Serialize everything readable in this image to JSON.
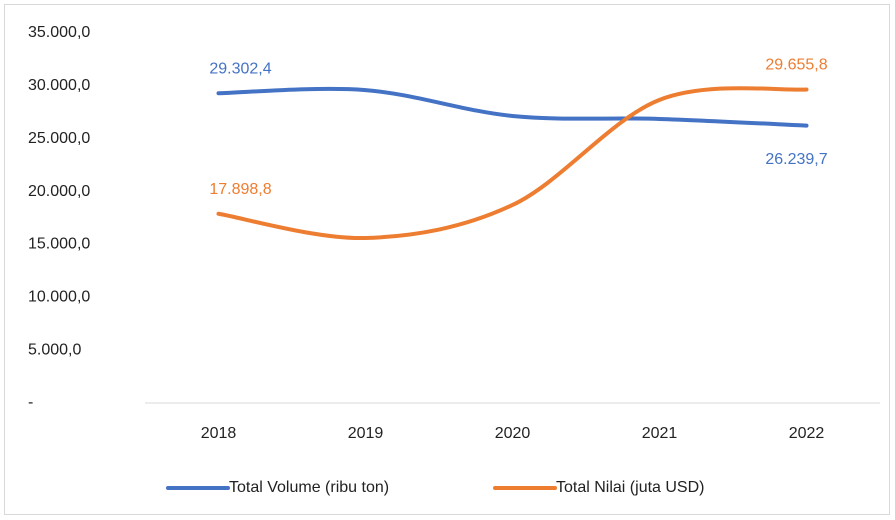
{
  "chart_data": {
    "type": "line",
    "categories": [
      "2018",
      "2019",
      "2020",
      "2021",
      "2022"
    ],
    "series": [
      {
        "name": "Total Volume (ribu ton)",
        "color": "#4472c4",
        "values": [
          29302.4,
          29600,
          27150,
          26870,
          26239.7
        ],
        "value_labels": [
          "29.302,4",
          null,
          null,
          null,
          "26.239,7"
        ]
      },
      {
        "name": "Total Nilai (juta USD)",
        "color": "#ed7d31",
        "values": [
          17898.8,
          15610,
          18730,
          28670,
          29655.8
        ],
        "value_labels": [
          "17.898,8",
          null,
          null,
          null,
          "29.655,8"
        ]
      }
    ],
    "ylim": [
      0,
      35000
    ],
    "yticks": [
      {
        "value": 0,
        "label": "-"
      },
      {
        "value": 5000,
        "label": "5.000,0"
      },
      {
        "value": 10000,
        "label": "10.000,0"
      },
      {
        "value": 15000,
        "label": "15.000,0"
      },
      {
        "value": 20000,
        "label": "20.000,0"
      },
      {
        "value": 25000,
        "label": "25.000,0"
      },
      {
        "value": 30000,
        "label": "30.000,0"
      },
      {
        "value": 35000,
        "label": "35.000,0"
      }
    ],
    "legend": "bottom",
    "smooth": true
  }
}
